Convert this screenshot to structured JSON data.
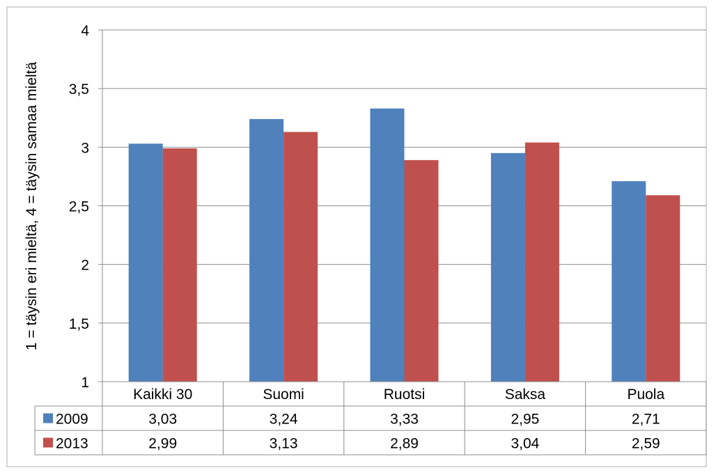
{
  "chart_data": {
    "type": "bar",
    "title": "",
    "xlabel": "",
    "ylabel": "1 = täysin eri mieltä, 4 = täysin samaa mieltä",
    "ylim": [
      1,
      4
    ],
    "yticks": [
      "1",
      "1,5",
      "2",
      "2,5",
      "3",
      "3,5",
      "4"
    ],
    "grid": true,
    "legend": "data-table",
    "categories": [
      "Kaikki 30",
      "Suomi",
      "Ruotsi",
      "Saksa",
      "Puola"
    ],
    "series": [
      {
        "name": "2009",
        "color": "#4F81BD",
        "values": [
          3.03,
          3.24,
          3.33,
          2.95,
          2.71
        ],
        "labels": [
          "3,03",
          "3,24",
          "3,33",
          "2,95",
          "2,71"
        ]
      },
      {
        "name": "2013",
        "color": "#C0504D",
        "values": [
          2.99,
          3.13,
          2.89,
          3.04,
          2.59
        ],
        "labels": [
          "2,99",
          "3,13",
          "2,89",
          "3,04",
          "2,59"
        ]
      }
    ]
  }
}
